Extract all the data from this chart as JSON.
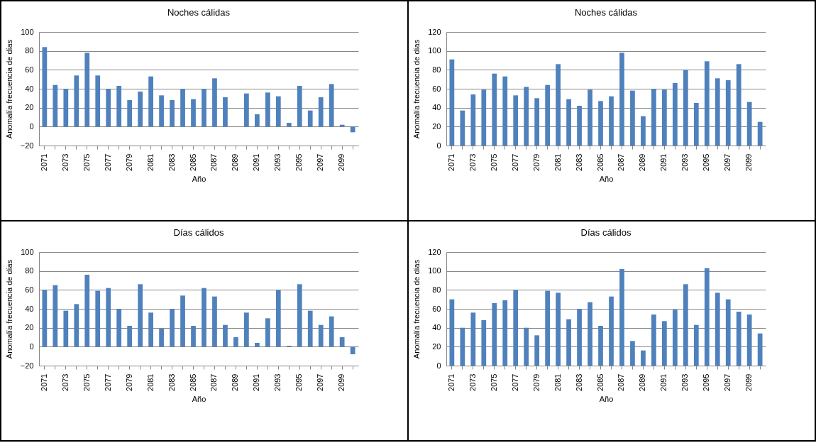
{
  "chart_data": [
    {
      "type": "bar",
      "title": "Noches cálidas",
      "xlabel": "Año",
      "ylabel": "Anomalía frecuencia de días",
      "color": "#4f81bd",
      "grid": "y",
      "ylim": [
        -20,
        100
      ],
      "yticks": [
        -20,
        0,
        20,
        40,
        60,
        80,
        100
      ],
      "categories": [
        "2071",
        null,
        "2073",
        null,
        "2075",
        null,
        "2077",
        null,
        "2079",
        null,
        "2081",
        null,
        "2083",
        null,
        "2085",
        null,
        "2087",
        null,
        "2089",
        null,
        "2091",
        null,
        "2093",
        null,
        "2095",
        null,
        "2097",
        null,
        "2099",
        null
      ],
      "values": [
        84,
        44,
        40,
        54,
        78,
        54,
        40,
        43,
        28,
        37,
        53,
        33,
        28,
        40,
        29,
        40,
        51,
        31,
        0,
        35,
        13,
        36,
        32,
        4,
        43,
        17,
        31,
        45,
        2,
        -6
      ]
    },
    {
      "type": "bar",
      "title": "Noches cálidas",
      "xlabel": "Año",
      "ylabel": "Anomalía frecuencia de días",
      "color": "#4f81bd",
      "grid": "y",
      "ylim": [
        0,
        120
      ],
      "yticks": [
        0,
        20,
        40,
        60,
        80,
        100,
        120
      ],
      "categories": [
        "2071",
        null,
        "2073",
        null,
        "2075",
        null,
        "2077",
        null,
        "2079",
        null,
        "2081",
        null,
        "2083",
        null,
        "2085",
        null,
        "2087",
        null,
        "2089",
        null,
        "2091",
        null,
        "2093",
        null,
        "2095",
        null,
        "2097",
        null,
        "2099",
        null
      ],
      "values": [
        91,
        37,
        54,
        59,
        76,
        73,
        53,
        62,
        50,
        64,
        86,
        49,
        42,
        59,
        47,
        52,
        98,
        58,
        31,
        60,
        59,
        66,
        80,
        45,
        89,
        71,
        69,
        86,
        46,
        25
      ]
    },
    {
      "type": "bar",
      "title": "Días cálidos",
      "xlabel": "Año",
      "ylabel": "Anomalía frecuencia de días",
      "color": "#4f81bd",
      "grid": "y",
      "ylim": [
        -20,
        100
      ],
      "yticks": [
        -20,
        0,
        20,
        40,
        60,
        80,
        100
      ],
      "categories": [
        "2071",
        null,
        "2073",
        null,
        "2075",
        null,
        "2077",
        null,
        "2079",
        null,
        "2081",
        null,
        "2083",
        null,
        "2085",
        null,
        "2087",
        null,
        "2089",
        null,
        "2091",
        null,
        "2093",
        null,
        "2095",
        null,
        "2097",
        null,
        "2099",
        null
      ],
      "values": [
        60,
        65,
        38,
        45,
        76,
        59,
        62,
        40,
        22,
        66,
        36,
        19,
        40,
        54,
        22,
        62,
        53,
        23,
        10,
        36,
        4,
        30,
        60,
        1,
        66,
        38,
        23,
        32,
        10,
        -8
      ]
    },
    {
      "type": "bar",
      "title": "Días cálidos",
      "xlabel": "Año",
      "ylabel": "Anomalía frecuencia de días",
      "color": "#4f81bd",
      "grid": "y",
      "ylim": [
        0,
        120
      ],
      "yticks": [
        0,
        20,
        40,
        60,
        80,
        100,
        120
      ],
      "categories": [
        "2071",
        null,
        "2073",
        null,
        "2075",
        null,
        "2077",
        null,
        "2079",
        null,
        "2081",
        null,
        "2083",
        null,
        "2085",
        null,
        "2087",
        null,
        "2089",
        null,
        "2091",
        null,
        "2093",
        null,
        "2095",
        null,
        "2097",
        null,
        "2099",
        null
      ],
      "values": [
        70,
        40,
        56,
        48,
        66,
        69,
        80,
        40,
        32,
        79,
        77,
        49,
        60,
        67,
        42,
        73,
        102,
        26,
        16,
        54,
        47,
        59,
        86,
        43,
        103,
        77,
        70,
        57,
        54,
        34
      ]
    }
  ]
}
